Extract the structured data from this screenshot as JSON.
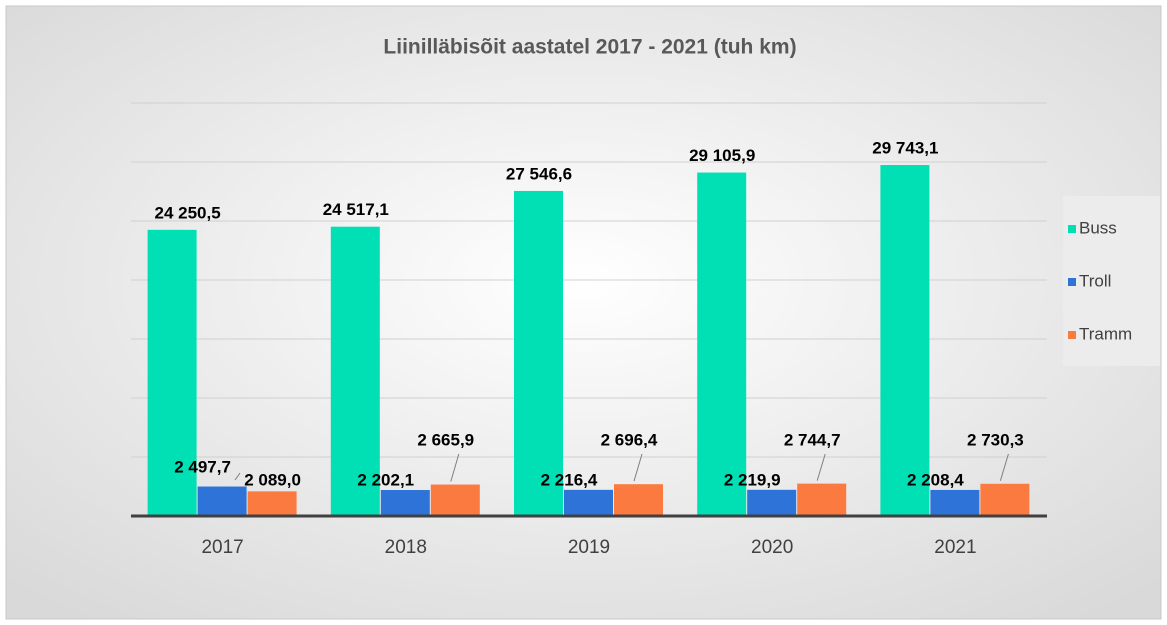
{
  "chart_data": {
    "type": "bar",
    "title": "Liinilläbisõit aastatel 2017 - 2021 (tuh km)",
    "categories": [
      "2017",
      "2018",
      "2019",
      "2020",
      "2021"
    ],
    "series": [
      {
        "name": "Buss",
        "color": "#00e0b4",
        "values": [
          24250.5,
          24517.1,
          27546.6,
          29105.9,
          29743.1
        ],
        "value_labels": [
          "24 250,5",
          "24 517,1",
          "27 546,6",
          "29 105,9",
          "29 743,1"
        ]
      },
      {
        "name": "Troll",
        "color": "#2e74d8",
        "values": [
          2497.7,
          2202.1,
          2216.4,
          2219.9,
          2208.4
        ],
        "value_labels": [
          "2 497,7",
          "2 202,1",
          "2 216,4",
          "2 219,9",
          "2 208,4"
        ]
      },
      {
        "name": "Tramm",
        "color": "#fb7a40",
        "values": [
          2089.0,
          2665.9,
          2696.4,
          2744.7,
          2730.3
        ],
        "value_labels": [
          "2 089,0",
          "2 665,9",
          "2 696,4",
          "2 744,7",
          "2 730,3"
        ]
      }
    ],
    "ylim": [
      0,
      35000
    ],
    "yticks": [
      0,
      5000,
      10000,
      15000,
      20000,
      25000,
      30000,
      35000
    ],
    "grid": true,
    "legend": "right"
  }
}
